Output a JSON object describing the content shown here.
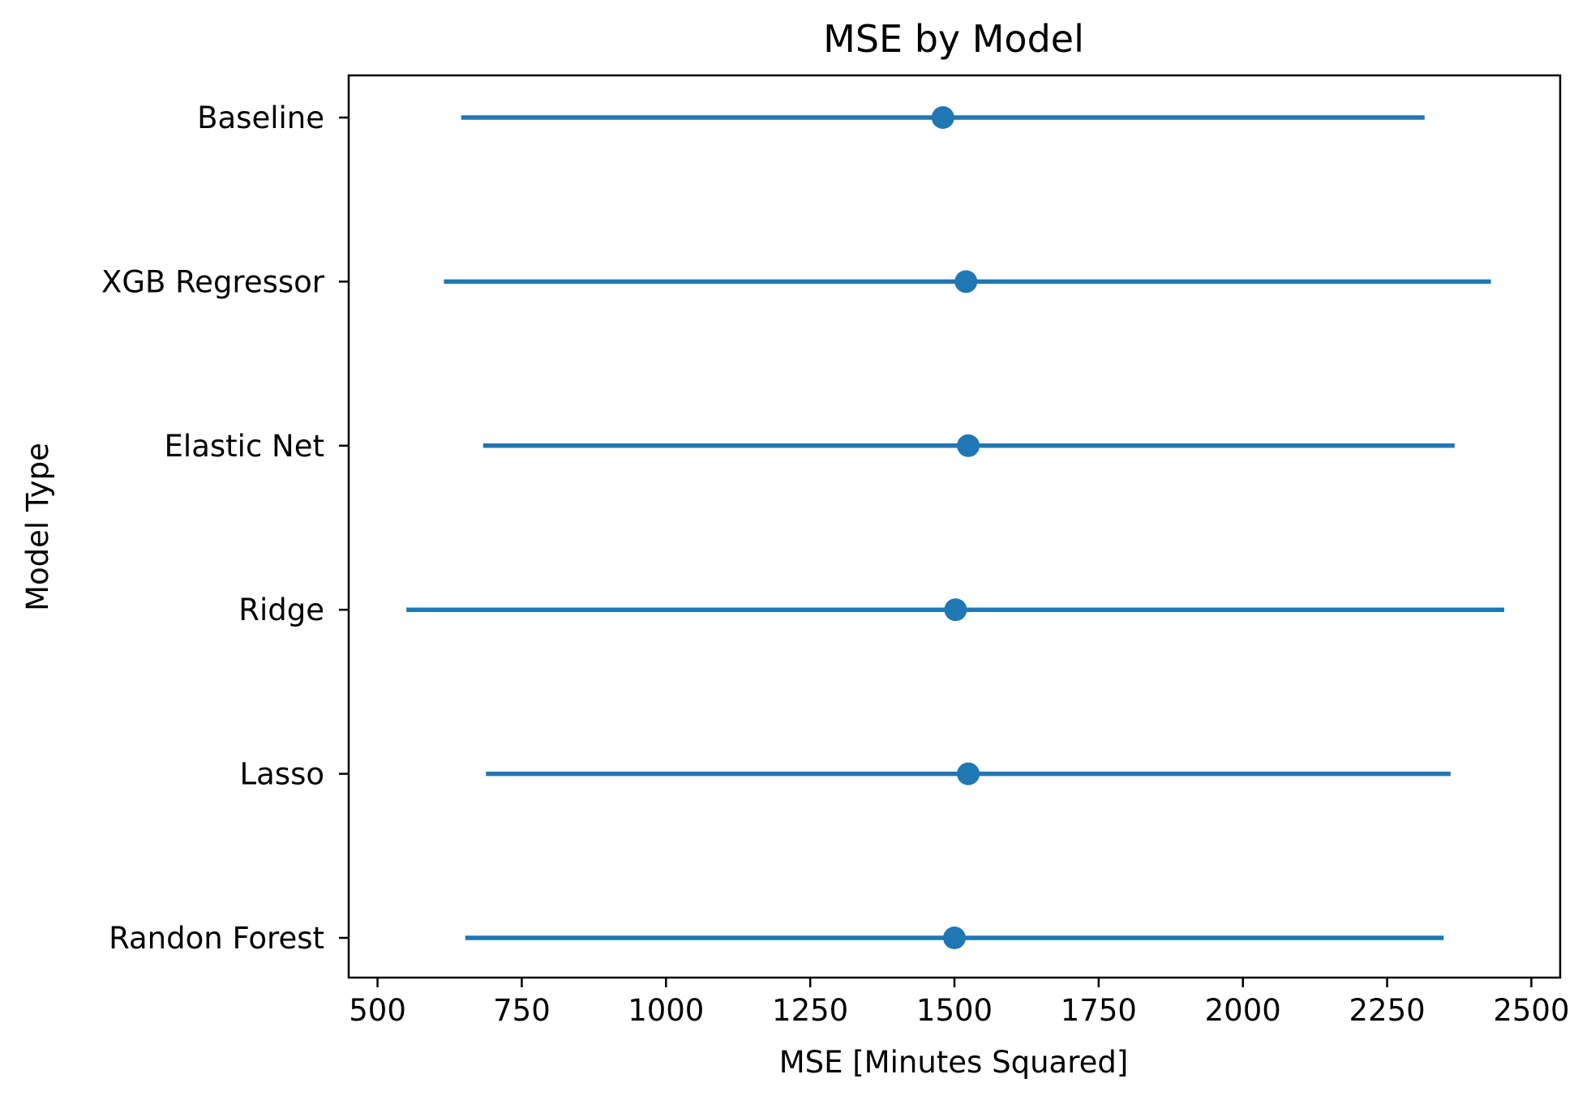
{
  "chart_data": {
    "type": "errorbar",
    "orientation": "horizontal",
    "title": "MSE by Model",
    "xlabel": "MSE [Minutes Squared]",
    "ylabel": "Model Type",
    "xlim": [
      450,
      2550
    ],
    "xticks": [
      500,
      750,
      1000,
      1250,
      1500,
      1750,
      2000,
      2250,
      2500
    ],
    "categories": [
      "Baseline",
      "XGB Regressor",
      "Elastic Net",
      "Ridge",
      "Lasso",
      "Randon Forest"
    ],
    "series": [
      {
        "mean": [
          1480,
          1520,
          1524,
          1502,
          1524,
          1500
        ],
        "lower": [
          645,
          615,
          683,
          550,
          688,
          652
        ],
        "upper": [
          2315,
          2430,
          2367,
          2453,
          2360,
          2348
        ]
      }
    ],
    "color": "#1f77b4",
    "grid": false,
    "legend": "none"
  }
}
